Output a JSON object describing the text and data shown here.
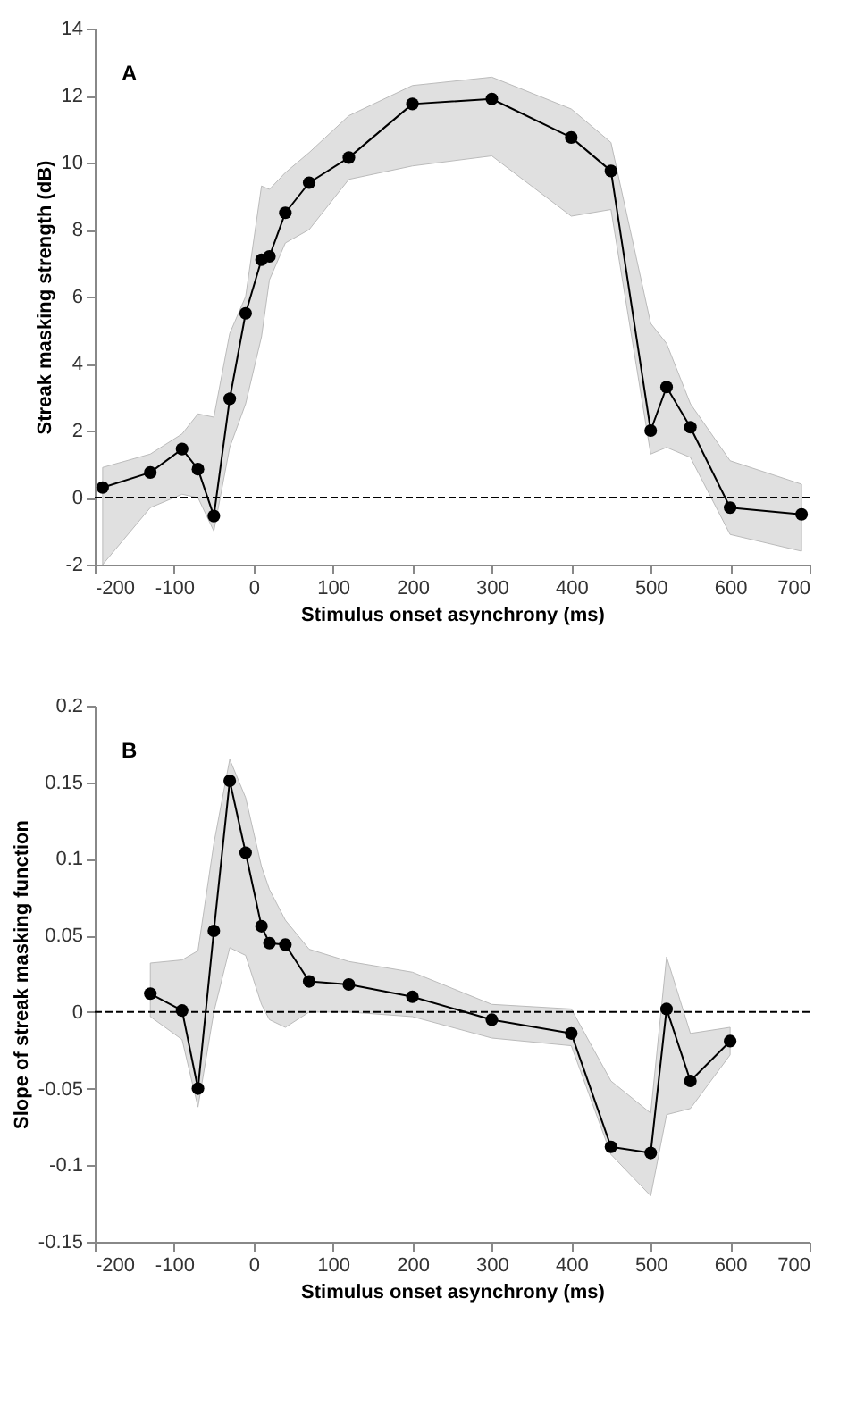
{
  "chart_data": [
    {
      "type": "line",
      "title": "A",
      "xlabel": "Stimulus onset asynchrony (ms)",
      "ylabel": "Streak masking strength (dB)",
      "xlim": [
        -200,
        700
      ],
      "xticks": [
        -200,
        -100,
        0,
        100,
        200,
        300,
        400,
        500,
        600,
        700
      ],
      "ylim": [
        -2,
        14
      ],
      "yticks": [
        -2,
        0,
        2,
        4,
        6,
        8,
        10,
        12,
        14
      ],
      "grid": false,
      "marker": "circle",
      "line_style": "solid",
      "ref_lines": [
        {
          "axis": "y",
          "value": 0,
          "line_style": "dashed",
          "color": "#000000"
        }
      ],
      "series": [
        {
          "color": "#000000",
          "x": [
            -190,
            -130,
            -90,
            -70,
            -50,
            -30,
            -10,
            10,
            20,
            40,
            70,
            120,
            200,
            300,
            400,
            450,
            500,
            520,
            550,
            600,
            690
          ],
          "values": [
            0.3,
            0.75,
            1.45,
            0.85,
            -0.55,
            2.95,
            5.5,
            7.1,
            7.2,
            8.5,
            9.4,
            10.15,
            11.75,
            11.9,
            10.75,
            9.75,
            2.0,
            3.3,
            2.1,
            -0.3,
            -0.5
          ],
          "lower": [
            -2.0,
            -0.3,
            0.1,
            0.0,
            -1.0,
            1.5,
            2.8,
            4.8,
            6.5,
            7.6,
            8.0,
            9.5,
            9.9,
            10.2,
            8.4,
            8.6,
            1.3,
            1.5,
            1.2,
            -1.1,
            -1.6
          ],
          "upper": [
            0.9,
            1.3,
            1.9,
            2.5,
            2.4,
            4.9,
            6.0,
            9.3,
            9.2,
            9.7,
            10.3,
            11.4,
            12.3,
            12.55,
            11.6,
            10.6,
            5.2,
            4.6,
            2.8,
            1.1,
            0.4
          ]
        }
      ]
    },
    {
      "type": "line",
      "title": "B",
      "xlabel": "Stimulus onset asynchrony (ms)",
      "ylabel": "Slope of streak masking function",
      "xlim": [
        -200,
        700
      ],
      "xticks": [
        -200,
        -100,
        0,
        100,
        200,
        300,
        400,
        500,
        600,
        700
      ],
      "ylim": [
        -0.15,
        0.2
      ],
      "yticks": [
        -0.15,
        -0.1,
        -0.05,
        0,
        0.05,
        0.1,
        0.15,
        0.2
      ],
      "grid": false,
      "marker": "circle",
      "line_style": "solid",
      "ref_lines": [
        {
          "axis": "y",
          "value": 0,
          "line_style": "dashed",
          "color": "#000000"
        }
      ],
      "series": [
        {
          "color": "#000000",
          "x": [
            -130,
            -90,
            -70,
            -50,
            -30,
            -10,
            10,
            20,
            40,
            70,
            120,
            200,
            300,
            400,
            450,
            500,
            520,
            550,
            600
          ],
          "values": [
            0.012,
            0.001,
            -0.05,
            0.053,
            0.151,
            0.104,
            0.056,
            0.045,
            0.044,
            0.02,
            0.018,
            0.01,
            -0.005,
            -0.014,
            -0.088,
            -0.092,
            0.002,
            -0.045,
            -0.019
          ],
          "lower": [
            -0.003,
            -0.018,
            -0.062,
            0.0,
            0.042,
            0.037,
            0.005,
            -0.005,
            -0.01,
            0.0,
            0.0,
            -0.003,
            -0.017,
            -0.022,
            -0.093,
            -0.12,
            -0.067,
            -0.063,
            -0.028
          ],
          "upper": [
            0.032,
            0.034,
            0.04,
            0.11,
            0.165,
            0.14,
            0.095,
            0.08,
            0.06,
            0.041,
            0.033,
            0.026,
            0.005,
            0.002,
            -0.045,
            -0.066,
            0.036,
            -0.014,
            -0.01
          ]
        }
      ]
    }
  ]
}
